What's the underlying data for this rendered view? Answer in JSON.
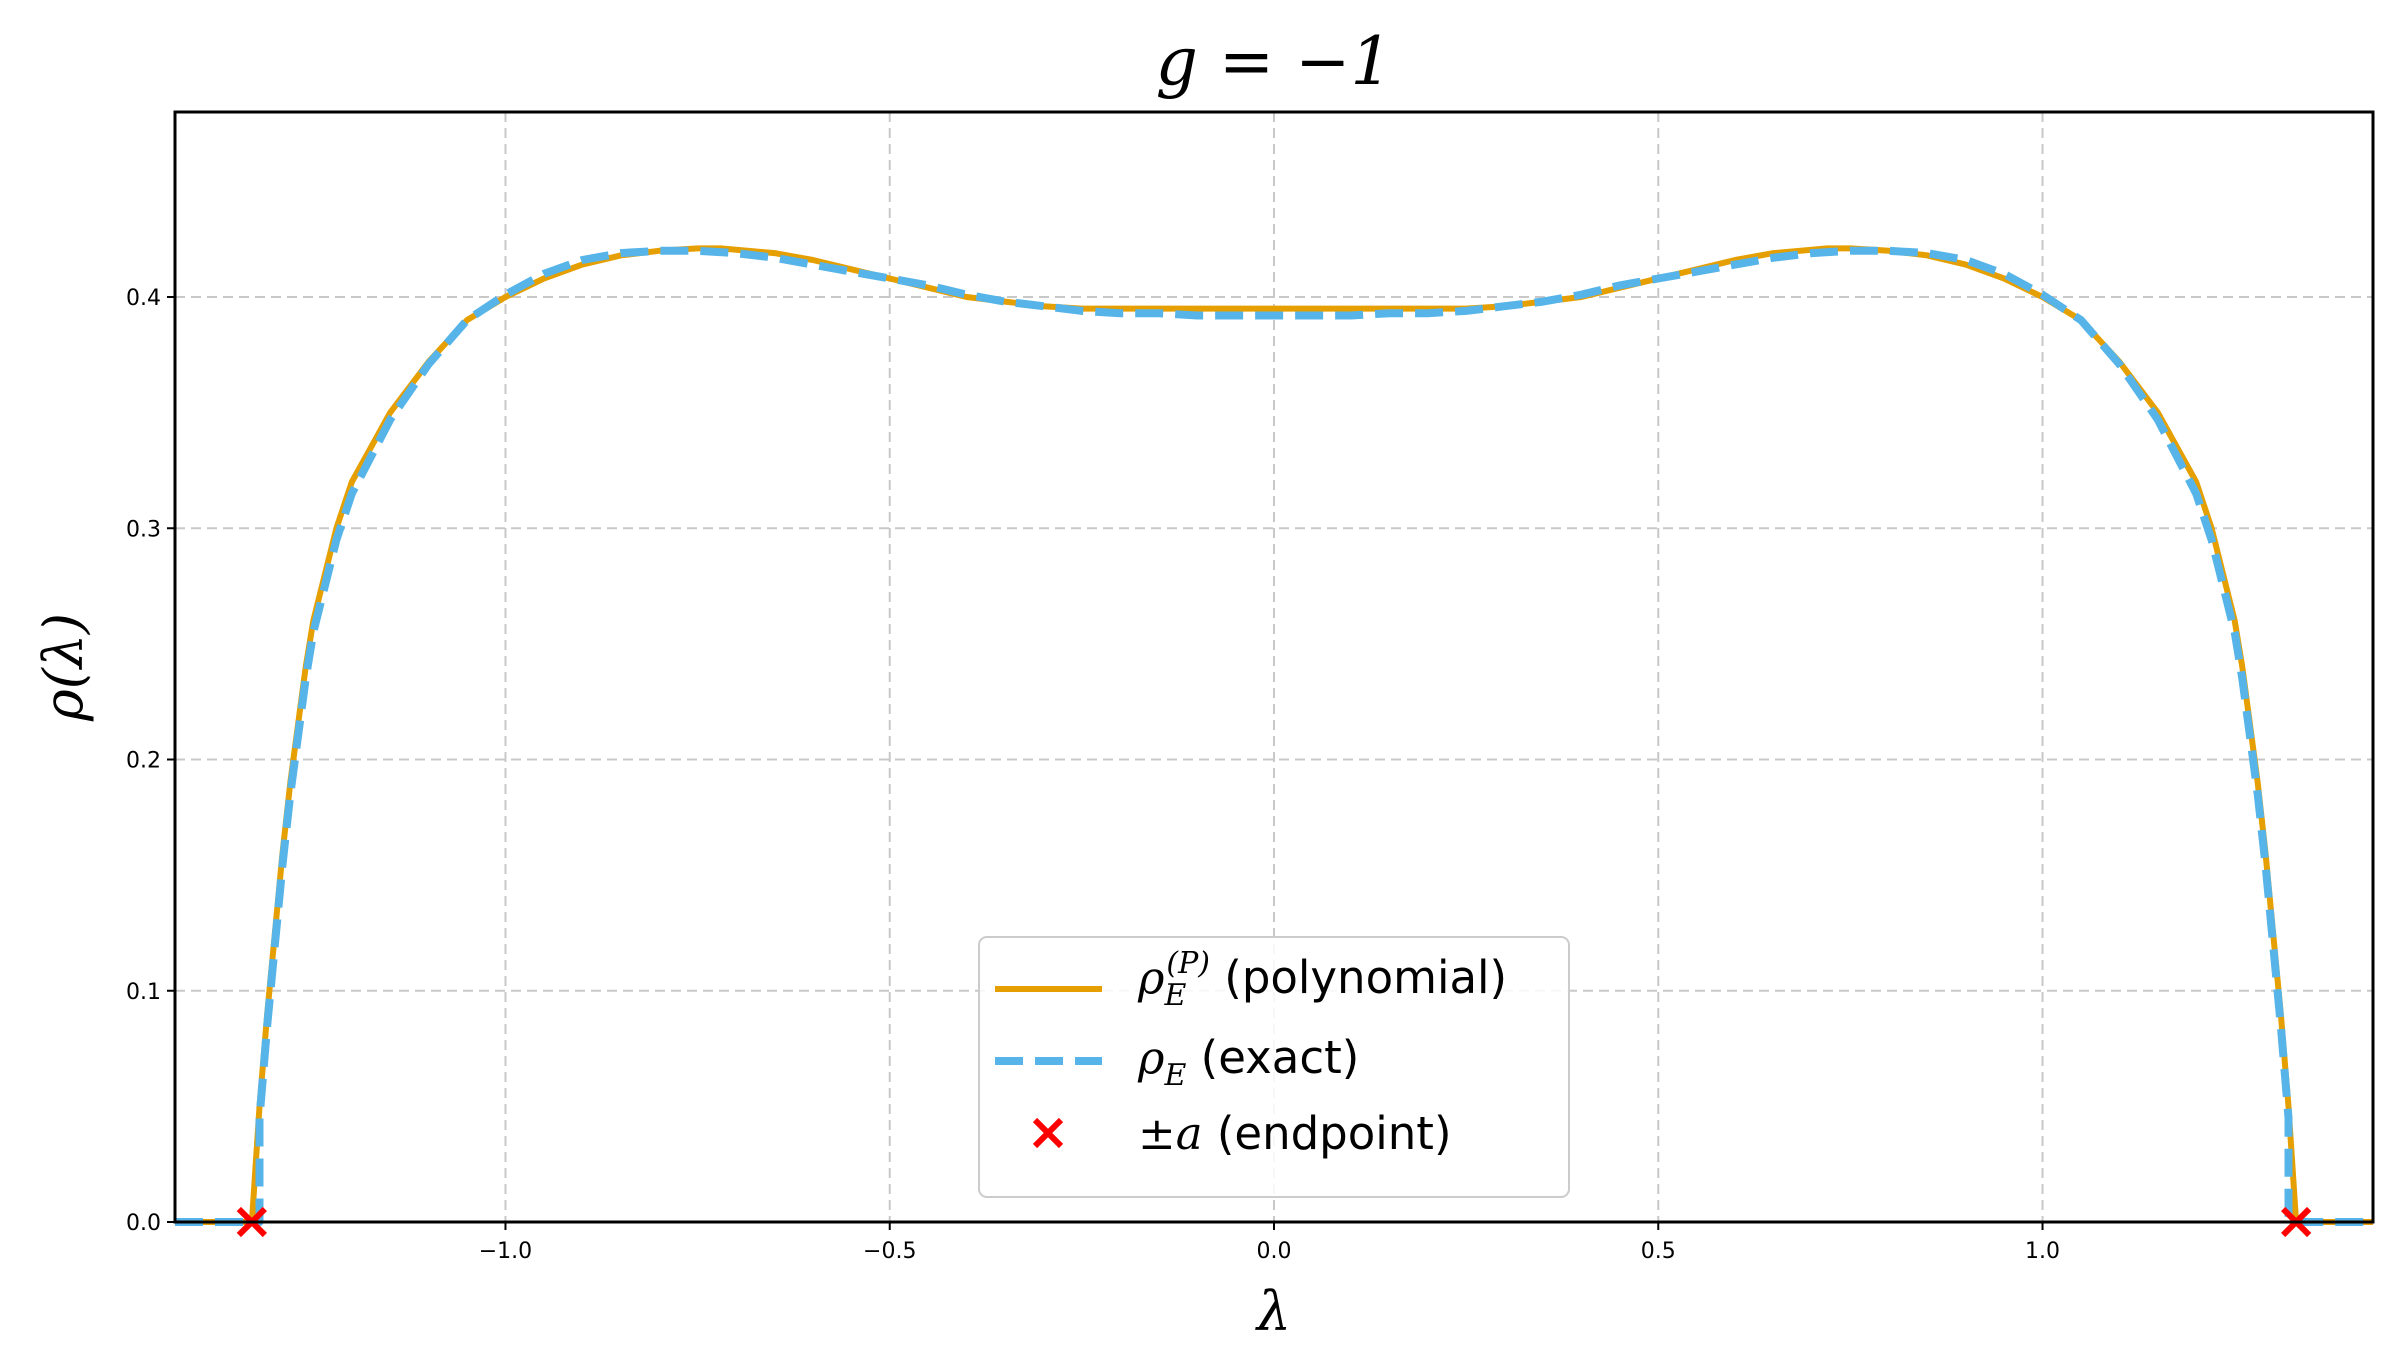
{
  "chart_data": {
    "type": "line",
    "title": "g = −1",
    "xlabel": "λ",
    "ylabel": "ρ(λ)",
    "xlim": [
      -1.43,
      1.43
    ],
    "ylim": [
      0,
      0.48
    ],
    "grid": true,
    "legend_position": "lower center",
    "x_ticks": [
      -1.0,
      -0.5,
      0.0,
      0.5,
      1.0
    ],
    "x_tick_labels": [
      "−1.0",
      "−0.5",
      "0.0",
      "0.5",
      "1.0"
    ],
    "y_ticks": [
      0.0,
      0.1,
      0.2,
      0.3,
      0.4
    ],
    "y_tick_labels": [
      "0.0",
      "0.1",
      "0.2",
      "0.3",
      "0.4"
    ],
    "colors": {
      "polynomial": "#E69F00",
      "exact": "#56B4E9",
      "endpoint": "#FF0000",
      "grid": "#c8c8c8"
    },
    "series": [
      {
        "name": "ρ_E^(P) (polynomial)",
        "style": "solid",
        "x": [
          -1.43,
          -1.33,
          -1.33,
          -1.32,
          -1.31,
          -1.3,
          -1.29,
          -1.28,
          -1.27,
          -1.26,
          -1.25,
          -1.22,
          -1.2,
          -1.15,
          -1.1,
          -1.05,
          -1.0,
          -0.95,
          -0.9,
          -0.85,
          -0.8,
          -0.75,
          -0.72,
          -0.65,
          -0.6,
          -0.55,
          -0.5,
          -0.45,
          -0.4,
          -0.35,
          -0.3,
          -0.25,
          -0.2,
          -0.15,
          -0.1,
          -0.05,
          0.0,
          0.05,
          0.1,
          0.15,
          0.2,
          0.25,
          0.3,
          0.35,
          0.4,
          0.45,
          0.5,
          0.55,
          0.6,
          0.65,
          0.72,
          0.75,
          0.8,
          0.85,
          0.9,
          0.95,
          1.0,
          1.05,
          1.1,
          1.15,
          1.2,
          1.22,
          1.25,
          1.26,
          1.27,
          1.28,
          1.29,
          1.3,
          1.31,
          1.32,
          1.33,
          1.33,
          1.43
        ],
        "y": [
          0.0,
          0.0,
          0.0,
          0.05,
          0.09,
          0.125,
          0.16,
          0.19,
          0.215,
          0.24,
          0.26,
          0.3,
          0.32,
          0.35,
          0.372,
          0.39,
          0.4,
          0.408,
          0.414,
          0.418,
          0.42,
          0.421,
          0.421,
          0.419,
          0.416,
          0.412,
          0.408,
          0.404,
          0.4,
          0.398,
          0.396,
          0.395,
          0.395,
          0.395,
          0.395,
          0.395,
          0.395,
          0.395,
          0.395,
          0.395,
          0.395,
          0.395,
          0.396,
          0.398,
          0.4,
          0.404,
          0.408,
          0.412,
          0.416,
          0.419,
          0.421,
          0.421,
          0.42,
          0.418,
          0.414,
          0.408,
          0.4,
          0.39,
          0.372,
          0.35,
          0.32,
          0.3,
          0.26,
          0.24,
          0.215,
          0.19,
          0.16,
          0.125,
          0.09,
          0.05,
          0.0,
          0.0,
          0.0
        ]
      },
      {
        "name": "ρ_E (exact)",
        "style": "dashed",
        "x": [
          -1.43,
          -1.33,
          -1.32,
          -1.32,
          -1.31,
          -1.3,
          -1.29,
          -1.28,
          -1.27,
          -1.26,
          -1.25,
          -1.22,
          -1.2,
          -1.15,
          -1.1,
          -1.05,
          -1.0,
          -0.95,
          -0.9,
          -0.85,
          -0.8,
          -0.75,
          -0.7,
          -0.65,
          -0.6,
          -0.55,
          -0.5,
          -0.45,
          -0.4,
          -0.35,
          -0.3,
          -0.25,
          -0.2,
          -0.15,
          -0.1,
          -0.05,
          0.0,
          0.05,
          0.1,
          0.15,
          0.2,
          0.25,
          0.3,
          0.35,
          0.4,
          0.45,
          0.5,
          0.55,
          0.6,
          0.65,
          0.7,
          0.75,
          0.8,
          0.85,
          0.9,
          0.95,
          1.0,
          1.05,
          1.1,
          1.15,
          1.2,
          1.22,
          1.25,
          1.26,
          1.27,
          1.28,
          1.29,
          1.3,
          1.31,
          1.32,
          1.32,
          1.33,
          1.43
        ],
        "y": [
          0.0,
          0.0,
          0.0,
          0.045,
          0.085,
          0.12,
          0.155,
          0.185,
          0.21,
          0.235,
          0.255,
          0.295,
          0.315,
          0.347,
          0.371,
          0.39,
          0.401,
          0.41,
          0.416,
          0.419,
          0.42,
          0.42,
          0.419,
          0.417,
          0.414,
          0.411,
          0.408,
          0.405,
          0.401,
          0.398,
          0.396,
          0.394,
          0.393,
          0.393,
          0.392,
          0.392,
          0.392,
          0.392,
          0.392,
          0.393,
          0.393,
          0.394,
          0.396,
          0.398,
          0.401,
          0.405,
          0.408,
          0.411,
          0.414,
          0.417,
          0.419,
          0.42,
          0.42,
          0.419,
          0.416,
          0.41,
          0.401,
          0.39,
          0.371,
          0.347,
          0.315,
          0.295,
          0.255,
          0.235,
          0.21,
          0.185,
          0.155,
          0.12,
          0.085,
          0.045,
          0.0,
          0.0,
          0.0
        ]
      },
      {
        "name": "±a (endpoint)",
        "style": "markers",
        "x": [
          -1.33,
          1.33
        ],
        "y": [
          0.0,
          0.0
        ]
      }
    ],
    "legend": [
      {
        "symbol": "ρ",
        "subscript": "E",
        "superscript": "(P)",
        "text": " (polynomial)"
      },
      {
        "symbol": "ρ",
        "subscript": "E",
        "superscript": "",
        "text": " (exact)"
      },
      {
        "symbol": "±a",
        "subscript": "",
        "superscript": "",
        "text": " (endpoint)"
      }
    ]
  }
}
